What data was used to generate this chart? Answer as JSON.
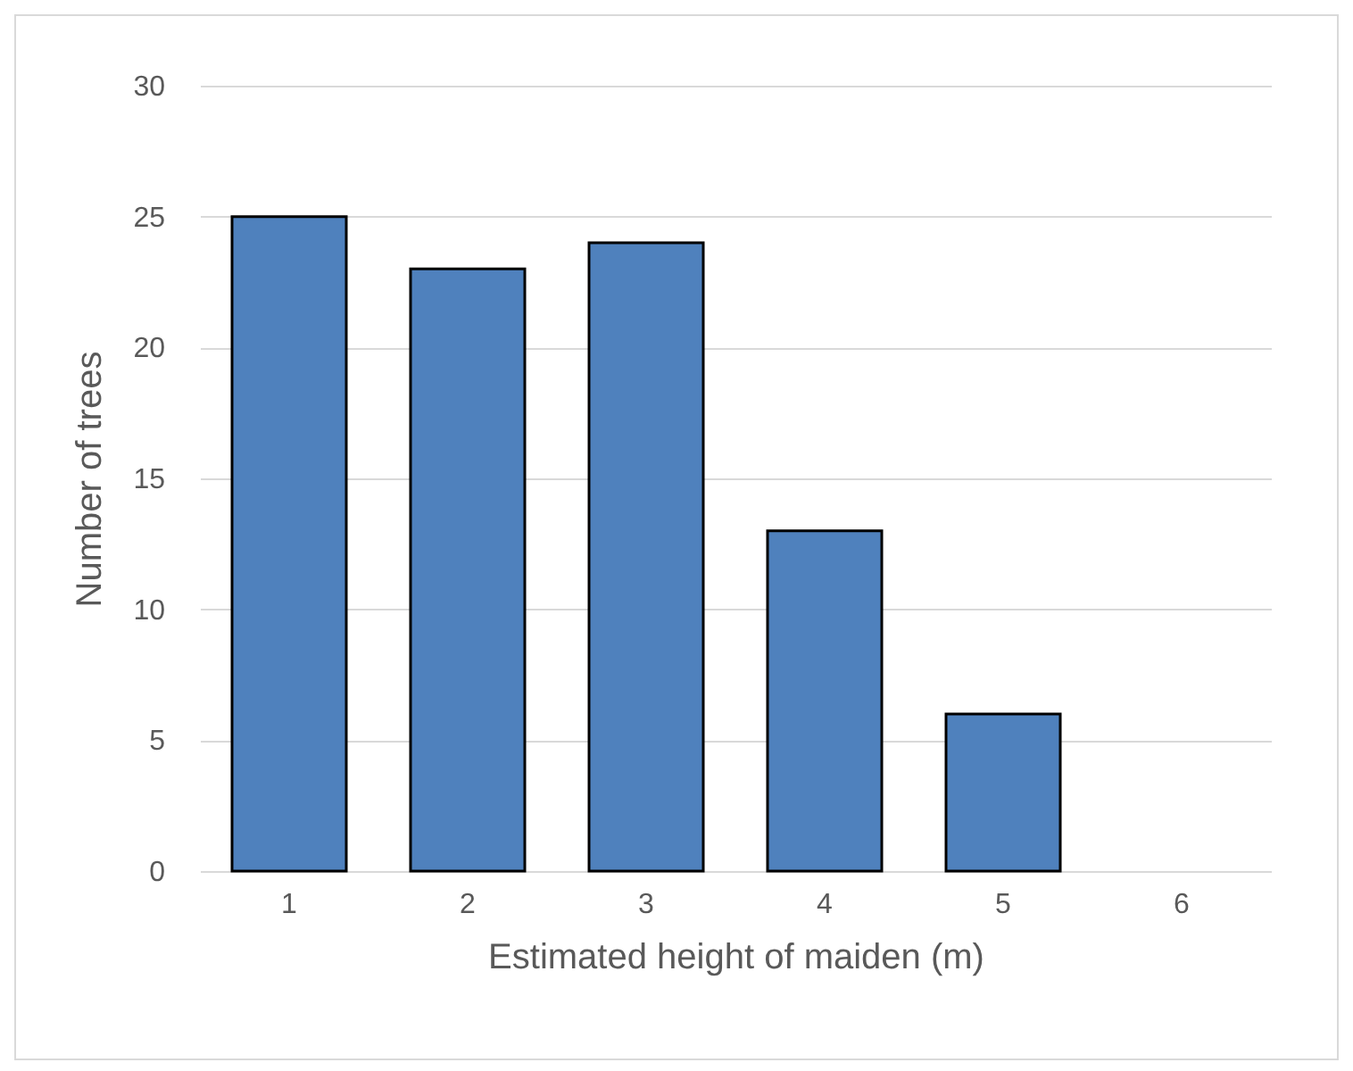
{
  "chart_data": {
    "type": "bar",
    "xlabel": "Estimated height of maiden (m)",
    "ylabel": "Number of trees",
    "categories": [
      "1",
      "2",
      "3",
      "4",
      "5",
      "6"
    ],
    "values": [
      25,
      23,
      24,
      13,
      6,
      0
    ],
    "color": "#4f81bd",
    "ylim": [
      0,
      30
    ],
    "yticks": [
      0,
      5,
      10,
      15,
      20,
      25,
      30
    ],
    "grid": "y"
  }
}
